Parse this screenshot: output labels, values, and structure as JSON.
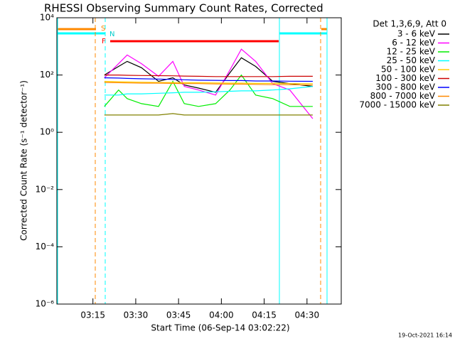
{
  "chart_data": {
    "type": "line",
    "title": "RHESSI Observing Summary Count Rates, Corrected",
    "xlabel": "Start Time (06-Sep-14 03:02:22)",
    "ylabel": "Corrected Count Rate (s⁻¹ detector⁻¹)",
    "legend_title": "Det 1,3,6,9, Att 0",
    "footer": "19-Oct-2021 16:14",
    "annotations": [
      "S",
      "N",
      "F"
    ],
    "log_y": true,
    "xlim": [
      2.37,
      102
    ],
    "xticks": [
      {
        "value": 15,
        "label": "03:15"
      },
      {
        "value": 30,
        "label": "03:30"
      },
      {
        "value": 45,
        "label": "03:45"
      },
      {
        "value": 60,
        "label": "04:00"
      },
      {
        "value": 75,
        "label": "04:15"
      },
      {
        "value": 90,
        "label": "04:30"
      }
    ],
    "ylim": [
      1e-06,
      10000
    ],
    "yticks": [
      {
        "value": 10000,
        "label": "10⁴"
      },
      {
        "value": 100,
        "label": "10²"
      },
      {
        "value": 1,
        "label": "10⁰"
      },
      {
        "value": 0.01,
        "label": "10⁻²"
      },
      {
        "value": 0.0001,
        "label": "10⁻⁴"
      },
      {
        "value": 1e-06,
        "label": "10⁻⁶"
      }
    ],
    "x": [
      19,
      24,
      27,
      32,
      38,
      43,
      47,
      52,
      58,
      63,
      67,
      72,
      78,
      84,
      92
    ],
    "series": [
      {
        "name": "3 - 6 keV",
        "color": "#000000",
        "values": [
          100,
          200,
          300,
          180,
          60,
          80,
          45,
          35,
          25,
          120,
          400,
          200,
          60,
          50,
          40
        ]
      },
      {
        "name": "6 - 12 keV",
        "color": "#ff00ff",
        "values": [
          80,
          250,
          500,
          250,
          90,
          300,
          40,
          30,
          20,
          150,
          800,
          300,
          50,
          30,
          3
        ]
      },
      {
        "name": "12 - 25 keV",
        "color": "#00ee00",
        "values": [
          8,
          30,
          15,
          10,
          8,
          60,
          10,
          8,
          10,
          30,
          100,
          20,
          15,
          8,
          8
        ]
      },
      {
        "name": "25 - 50 keV",
        "color": "#00ffff",
        "values": [
          20,
          20,
          22,
          22,
          23,
          24,
          25,
          25,
          26,
          27,
          28,
          28,
          30,
          33,
          40
        ]
      },
      {
        "name": "50 - 100 keV",
        "color": "#ffcc00",
        "values": [
          60,
          58,
          57,
          56,
          55,
          55,
          54,
          54,
          53,
          52,
          52,
          51,
          51,
          50,
          50
        ]
      },
      {
        "name": "100 - 300 keV",
        "color": "#cc0000",
        "values": [
          100,
          100,
          98,
          96,
          95,
          94,
          92,
          90,
          88,
          88,
          88,
          88,
          88,
          90,
          90
        ]
      },
      {
        "name": "300 - 800 keV",
        "color": "#0000ff",
        "values": [
          80,
          78,
          76,
          74,
          72,
          70,
          68,
          66,
          65,
          64,
          64,
          62,
          62,
          61,
          60
        ]
      },
      {
        "name": "800 - 7000 keV",
        "color": "#ff8800",
        "values": [
          55,
          54,
          53,
          52,
          52,
          51,
          50,
          50,
          49,
          48,
          48,
          47,
          46,
          46,
          45
        ]
      },
      {
        "name": "7000 - 15000 keV",
        "color": "#808000",
        "values": [
          4,
          4,
          4,
          4,
          4,
          4.5,
          4,
          4,
          4,
          4,
          4,
          4,
          4,
          4,
          4
        ]
      }
    ]
  }
}
